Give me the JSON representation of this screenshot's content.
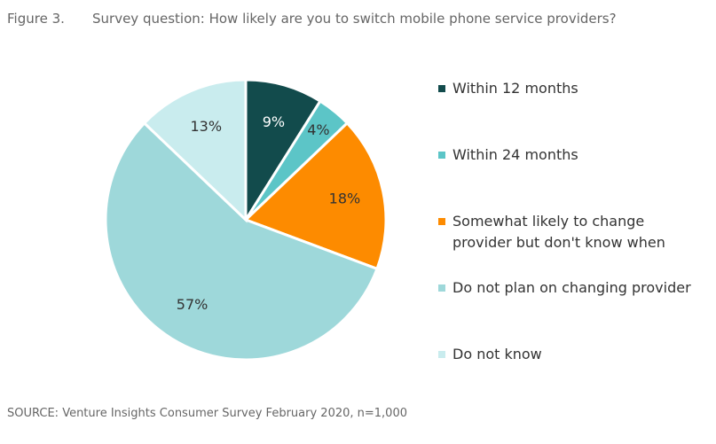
{
  "chart_data": {
    "type": "pie",
    "figure_label": "Figure 3.",
    "title": "Survey question: How likely are you to switch mobile phone service providers?",
    "categories": [
      "Within 12 months",
      "Within 24 months",
      "Somewhat likely to change provider but don't know when",
      "Do not plan on changing provider",
      "Do not know"
    ],
    "values": [
      9,
      4,
      18,
      57,
      13
    ],
    "value_labels": [
      "9%",
      "4%",
      "18%",
      "57%",
      "13%"
    ],
    "colors": [
      "#124b4c",
      "#5cc5c7",
      "#fd8b00",
      "#9ed8da",
      "#c9ecee"
    ],
    "label_colors": [
      "#ffffff",
      "#333333",
      "#333333",
      "#333333",
      "#333333"
    ],
    "source": "SOURCE: Venture Insights Consumer Survey February 2020, n=1,000"
  }
}
